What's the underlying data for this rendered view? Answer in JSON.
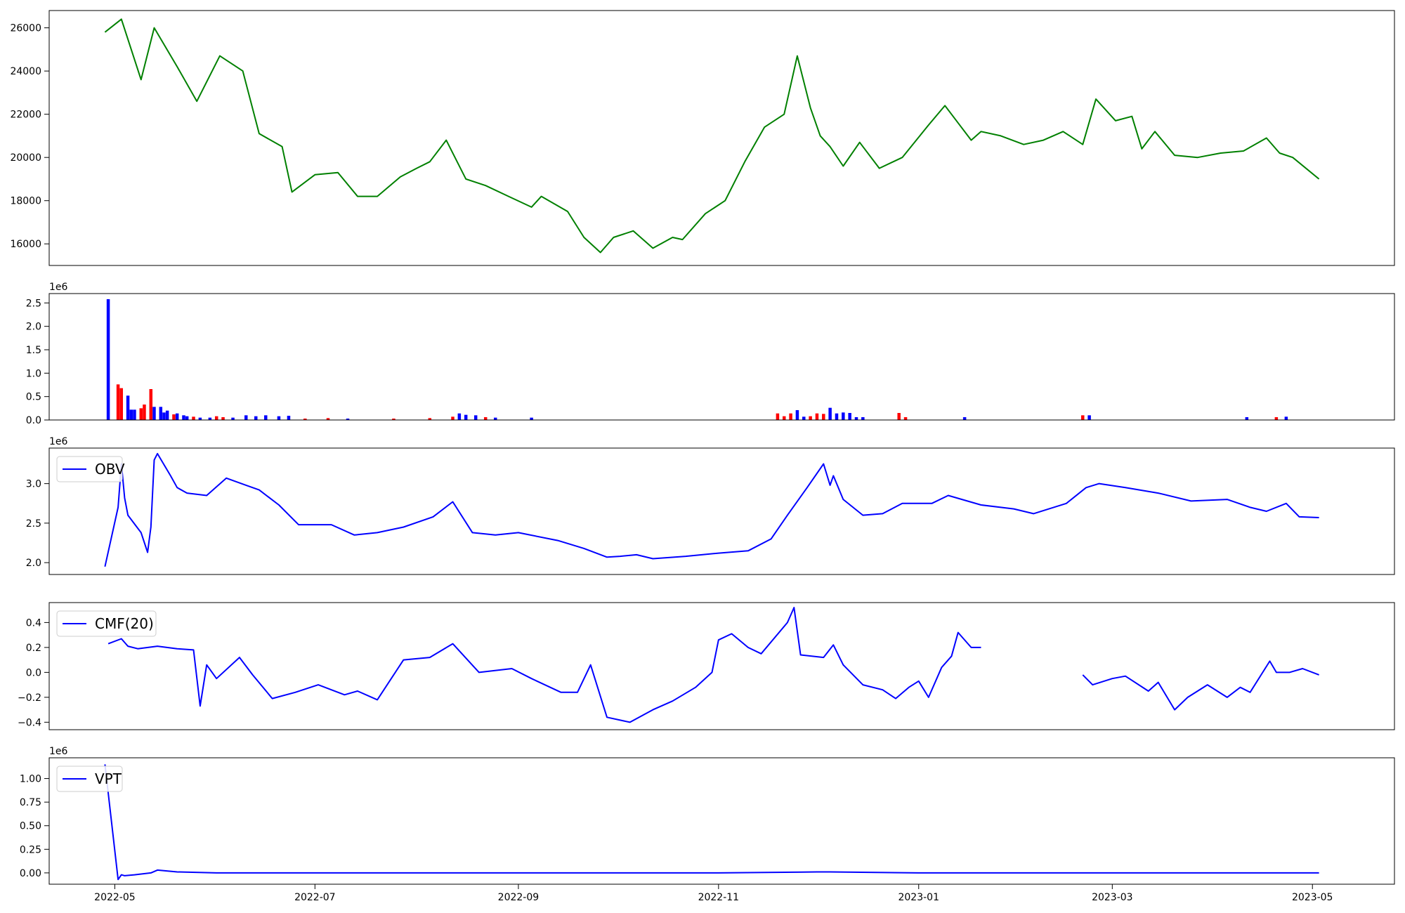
{
  "chart_data": [
    {
      "type": "line",
      "panel": "price",
      "color": "#008000",
      "ylim": [
        15000,
        26800
      ],
      "yticks": [
        16000,
        18000,
        20000,
        22000,
        24000,
        26000
      ],
      "ytick_labels": [
        "16000",
        "18000",
        "20000",
        "22000",
        "24000",
        "26000"
      ],
      "x": [
        "2022-04-28",
        "2022-05-03",
        "2022-05-09",
        "2022-05-13",
        "2022-05-20",
        "2022-05-26",
        "2022-06-02",
        "2022-06-09",
        "2022-06-14",
        "2022-06-21",
        "2022-06-24",
        "2022-07-01",
        "2022-07-08",
        "2022-07-14",
        "2022-07-20",
        "2022-07-27",
        "2022-08-01",
        "2022-08-05",
        "2022-08-10",
        "2022-08-16",
        "2022-08-22",
        "2022-08-29",
        "2022-09-05",
        "2022-09-08",
        "2022-09-16",
        "2022-09-21",
        "2022-09-26",
        "2022-09-30",
        "2022-10-06",
        "2022-10-12",
        "2022-10-18",
        "2022-10-21",
        "2022-10-28",
        "2022-11-03",
        "2022-11-09",
        "2022-11-15",
        "2022-11-21",
        "2022-11-25",
        "2022-11-29",
        "2022-12-02",
        "2022-12-05",
        "2022-12-09",
        "2022-12-14",
        "2022-12-20",
        "2022-12-27",
        "2023-01-04",
        "2023-01-09",
        "2023-01-12",
        "2023-01-17",
        "2023-01-20",
        "2023-01-26",
        "2023-02-02",
        "2023-02-08",
        "2023-02-14",
        "2023-02-20",
        "2023-02-24",
        "2023-03-02",
        "2023-03-07",
        "2023-03-10",
        "2023-03-14",
        "2023-03-20",
        "2023-03-27",
        "2023-04-03",
        "2023-04-10",
        "2023-04-17",
        "2023-04-21",
        "2023-04-25",
        "2023-05-03"
      ],
      "values": [
        25800,
        26400,
        23600,
        26000,
        24200,
        22600,
        24700,
        24000,
        21100,
        20500,
        18400,
        19200,
        19300,
        18200,
        18200,
        19100,
        19500,
        19800,
        20800,
        19000,
        18700,
        18200,
        17700,
        18200,
        17500,
        16300,
        15600,
        16300,
        16600,
        15800,
        16300,
        16200,
        17400,
        18000,
        19800,
        21400,
        22000,
        24700,
        22300,
        21000,
        20500,
        19600,
        20700,
        19500,
        20000,
        21500,
        22400,
        21800,
        20800,
        21200,
        21000,
        20600,
        20800,
        21200,
        20600,
        22700,
        21700,
        21900,
        20400,
        21200,
        20100,
        20000,
        20200,
        20300,
        20900,
        20200,
        20000,
        19000
      ]
    },
    {
      "type": "bar",
      "panel": "volume",
      "multiplier_label": "1e6",
      "ylim": [
        0,
        2.7
      ],
      "yticks": [
        0,
        0.5,
        1.0,
        1.5,
        2.0,
        2.5
      ],
      "ytick_labels": [
        "0.0",
        "0.5",
        "1.0",
        "1.5",
        "2.0",
        "2.5"
      ],
      "colors": {
        "up": "#0000ff",
        "down": "#ff0000"
      },
      "bars": [
        {
          "x": "2022-04-29",
          "value": 2.58,
          "color": "up"
        },
        {
          "x": "2022-05-02",
          "value": 0.76,
          "color": "down"
        },
        {
          "x": "2022-05-03",
          "value": 0.68,
          "color": "down"
        },
        {
          "x": "2022-05-05",
          "value": 0.52,
          "color": "up"
        },
        {
          "x": "2022-05-06",
          "value": 0.22,
          "color": "up"
        },
        {
          "x": "2022-05-07",
          "value": 0.22,
          "color": "up"
        },
        {
          "x": "2022-05-09",
          "value": 0.25,
          "color": "down"
        },
        {
          "x": "2022-05-10",
          "value": 0.33,
          "color": "down"
        },
        {
          "x": "2022-05-12",
          "value": 0.66,
          "color": "down"
        },
        {
          "x": "2022-05-13",
          "value": 0.28,
          "color": "up"
        },
        {
          "x": "2022-05-15",
          "value": 0.28,
          "color": "up"
        },
        {
          "x": "2022-05-16",
          "value": 0.16,
          "color": "up"
        },
        {
          "x": "2022-05-17",
          "value": 0.2,
          "color": "up"
        },
        {
          "x": "2022-05-19",
          "value": 0.12,
          "color": "down"
        },
        {
          "x": "2022-05-20",
          "value": 0.14,
          "color": "up"
        },
        {
          "x": "2022-05-22",
          "value": 0.1,
          "color": "up"
        },
        {
          "x": "2022-05-23",
          "value": 0.08,
          "color": "up"
        },
        {
          "x": "2022-05-25",
          "value": 0.07,
          "color": "down"
        },
        {
          "x": "2022-05-27",
          "value": 0.05,
          "color": "up"
        },
        {
          "x": "2022-05-30",
          "value": 0.05,
          "color": "up"
        },
        {
          "x": "2022-06-01",
          "value": 0.08,
          "color": "down"
        },
        {
          "x": "2022-06-03",
          "value": 0.06,
          "color": "down"
        },
        {
          "x": "2022-06-06",
          "value": 0.05,
          "color": "up"
        },
        {
          "x": "2022-06-10",
          "value": 0.1,
          "color": "up"
        },
        {
          "x": "2022-06-13",
          "value": 0.08,
          "color": "up"
        },
        {
          "x": "2022-06-16",
          "value": 0.1,
          "color": "up"
        },
        {
          "x": "2022-06-20",
          "value": 0.08,
          "color": "up"
        },
        {
          "x": "2022-06-23",
          "value": 0.09,
          "color": "up"
        },
        {
          "x": "2022-06-28",
          "value": 0.03,
          "color": "down"
        },
        {
          "x": "2022-07-05",
          "value": 0.04,
          "color": "down"
        },
        {
          "x": "2022-07-11",
          "value": 0.03,
          "color": "up"
        },
        {
          "x": "2022-07-25",
          "value": 0.03,
          "color": "down"
        },
        {
          "x": "2022-08-05",
          "value": 0.04,
          "color": "down"
        },
        {
          "x": "2022-08-12",
          "value": 0.07,
          "color": "down"
        },
        {
          "x": "2022-08-14",
          "value": 0.14,
          "color": "up"
        },
        {
          "x": "2022-08-16",
          "value": 0.11,
          "color": "up"
        },
        {
          "x": "2022-08-19",
          "value": 0.1,
          "color": "up"
        },
        {
          "x": "2022-08-22",
          "value": 0.06,
          "color": "down"
        },
        {
          "x": "2022-08-25",
          "value": 0.05,
          "color": "up"
        },
        {
          "x": "2022-09-05",
          "value": 0.05,
          "color": "up"
        },
        {
          "x": "2022-11-19",
          "value": 0.14,
          "color": "down"
        },
        {
          "x": "2022-11-21",
          "value": 0.08,
          "color": "down"
        },
        {
          "x": "2022-11-23",
          "value": 0.14,
          "color": "down"
        },
        {
          "x": "2022-11-25",
          "value": 0.21,
          "color": "up"
        },
        {
          "x": "2022-11-27",
          "value": 0.07,
          "color": "up"
        },
        {
          "x": "2022-11-29",
          "value": 0.08,
          "color": "down"
        },
        {
          "x": "2022-12-01",
          "value": 0.14,
          "color": "down"
        },
        {
          "x": "2022-12-03",
          "value": 0.13,
          "color": "down"
        },
        {
          "x": "2022-12-05",
          "value": 0.26,
          "color": "up"
        },
        {
          "x": "2022-12-07",
          "value": 0.14,
          "color": "up"
        },
        {
          "x": "2022-12-09",
          "value": 0.16,
          "color": "up"
        },
        {
          "x": "2022-12-11",
          "value": 0.15,
          "color": "up"
        },
        {
          "x": "2022-12-13",
          "value": 0.06,
          "color": "up"
        },
        {
          "x": "2022-12-15",
          "value": 0.06,
          "color": "up"
        },
        {
          "x": "2022-12-26",
          "value": 0.15,
          "color": "down"
        },
        {
          "x": "2022-12-28",
          "value": 0.06,
          "color": "down"
        },
        {
          "x": "2023-01-15",
          "value": 0.06,
          "color": "up"
        },
        {
          "x": "2023-02-20",
          "value": 0.1,
          "color": "down"
        },
        {
          "x": "2023-02-22",
          "value": 0.1,
          "color": "up"
        },
        {
          "x": "2023-04-11",
          "value": 0.06,
          "color": "up"
        },
        {
          "x": "2023-04-20",
          "value": 0.06,
          "color": "down"
        },
        {
          "x": "2023-04-23",
          "value": 0.07,
          "color": "up"
        }
      ]
    },
    {
      "type": "line",
      "panel": "obv",
      "legend": "OBV",
      "legend_loc": "upper-left",
      "color": "#0000ff",
      "multiplier_label": "1e6",
      "ylim": [
        1.85,
        3.45
      ],
      "yticks": [
        2.0,
        2.5,
        3.0
      ],
      "ytick_labels": [
        "2.0",
        "2.5",
        "3.0"
      ],
      "x": [
        "2022-04-28",
        "2022-05-02",
        "2022-05-03",
        "2022-05-04",
        "2022-05-05",
        "2022-05-09",
        "2022-05-11",
        "2022-05-12",
        "2022-05-13",
        "2022-05-14",
        "2022-05-18",
        "2022-05-20",
        "2022-05-23",
        "2022-05-29",
        "2022-06-04",
        "2022-06-10",
        "2022-06-14",
        "2022-06-20",
        "2022-06-26",
        "2022-07-06",
        "2022-07-13",
        "2022-07-20",
        "2022-07-28",
        "2022-08-06",
        "2022-08-12",
        "2022-08-18",
        "2022-08-25",
        "2022-09-01",
        "2022-09-13",
        "2022-09-21",
        "2022-09-28",
        "2022-10-02",
        "2022-10-07",
        "2022-10-12",
        "2022-10-22",
        "2022-11-01",
        "2022-11-10",
        "2022-11-17",
        "2022-11-22",
        "2022-11-28",
        "2022-12-03",
        "2022-12-05",
        "2022-12-06",
        "2022-12-09",
        "2022-12-15",
        "2022-12-21",
        "2022-12-27",
        "2023-01-05",
        "2023-01-10",
        "2023-01-20",
        "2023-01-30",
        "2023-02-05",
        "2023-02-15",
        "2023-02-21",
        "2023-02-25",
        "2023-03-05",
        "2023-03-15",
        "2023-03-25",
        "2023-04-05",
        "2023-04-12",
        "2023-04-17",
        "2023-04-23",
        "2023-04-27",
        "2023-05-03"
      ],
      "values": [
        1.95,
        2.7,
        3.25,
        2.82,
        2.6,
        2.38,
        2.13,
        2.45,
        3.3,
        3.38,
        3.1,
        2.95,
        2.88,
        2.85,
        3.07,
        2.98,
        2.92,
        2.73,
        2.48,
        2.48,
        2.35,
        2.38,
        2.45,
        2.58,
        2.77,
        2.38,
        2.35,
        2.38,
        2.28,
        2.18,
        2.07,
        2.08,
        2.1,
        2.05,
        2.08,
        2.12,
        2.15,
        2.3,
        2.6,
        2.95,
        3.25,
        2.98,
        3.1,
        2.8,
        2.6,
        2.62,
        2.75,
        2.75,
        2.85,
        2.73,
        2.68,
        2.62,
        2.75,
        2.95,
        3.0,
        2.95,
        2.88,
        2.78,
        2.8,
        2.7,
        2.65,
        2.75,
        2.58,
        2.57
      ]
    },
    {
      "type": "line",
      "panel": "cmf",
      "legend": "CMF(20)",
      "legend_loc": "upper-left",
      "color": "#0000ff",
      "ylim": [
        -0.46,
        0.56
      ],
      "yticks": [
        -0.4,
        -0.2,
        0.0,
        0.2,
        0.4
      ],
      "ytick_labels": [
        "−0.4",
        "−0.2",
        "0.0",
        "0.2",
        "0.4"
      ],
      "segments": [
        {
          "x": [
            "2022-04-29",
            "2022-05-03",
            "2022-05-05",
            "2022-05-08",
            "2022-05-14",
            "2022-05-20",
            "2022-05-25",
            "2022-05-27",
            "2022-05-29",
            "2022-06-01",
            "2022-06-08",
            "2022-06-12",
            "2022-06-18",
            "2022-06-25",
            "2022-07-02",
            "2022-07-10",
            "2022-07-14",
            "2022-07-20",
            "2022-07-28",
            "2022-08-05",
            "2022-08-12",
            "2022-08-20",
            "2022-08-30",
            "2022-09-05",
            "2022-09-14",
            "2022-09-19",
            "2022-09-23",
            "2022-09-28",
            "2022-10-05",
            "2022-10-12",
            "2022-10-18",
            "2022-10-25",
            "2022-10-30",
            "2022-11-01",
            "2022-11-05",
            "2022-11-10",
            "2022-11-14",
            "2022-11-22",
            "2022-11-24",
            "2022-11-26",
            "2022-12-03",
            "2022-12-06",
            "2022-12-09",
            "2022-12-15",
            "2022-12-21",
            "2022-12-25",
            "2022-12-29",
            "2023-01-01",
            "2023-01-04",
            "2023-01-08",
            "2023-01-11",
            "2023-01-13",
            "2023-01-17",
            "2023-01-20"
          ],
          "values": [
            0.23,
            0.27,
            0.21,
            0.19,
            0.21,
            0.19,
            0.18,
            -0.27,
            0.06,
            -0.05,
            0.12,
            -0.02,
            -0.21,
            -0.16,
            -0.1,
            -0.18,
            -0.15,
            -0.22,
            0.1,
            0.12,
            0.23,
            0.0,
            0.03,
            -0.05,
            -0.16,
            -0.16,
            0.06,
            -0.36,
            -0.4,
            -0.3,
            -0.23,
            -0.12,
            0.0,
            0.26,
            0.31,
            0.2,
            0.15,
            0.4,
            0.52,
            0.14,
            0.12,
            0.22,
            0.06,
            -0.1,
            -0.14,
            -0.21,
            -0.12,
            -0.07,
            -0.2,
            0.04,
            0.13,
            0.32,
            0.2,
            0.2
          ]
        },
        {
          "x": [
            "2023-02-20",
            "2023-02-23",
            "2023-03-01",
            "2023-03-05",
            "2023-03-12",
            "2023-03-15",
            "2023-03-20",
            "2023-03-24",
            "2023-03-30",
            "2023-04-05",
            "2023-04-09",
            "2023-04-12",
            "2023-04-18",
            "2023-04-20",
            "2023-04-24",
            "2023-04-28",
            "2023-05-03"
          ],
          "values": [
            -0.02,
            -0.1,
            -0.05,
            -0.03,
            -0.15,
            -0.08,
            -0.3,
            -0.2,
            -0.1,
            -0.2,
            -0.12,
            -0.16,
            0.09,
            0.0,
            0.0,
            0.03,
            -0.02
          ]
        }
      ]
    },
    {
      "type": "line",
      "panel": "vpt",
      "legend": "VPT",
      "legend_loc": "upper-left",
      "color": "#0000ff",
      "multiplier_label": "1e6",
      "ylim": [
        -0.12,
        1.22
      ],
      "yticks": [
        0.0,
        0.25,
        0.5,
        0.75,
        1.0
      ],
      "ytick_labels": [
        "0.00",
        "0.25",
        "0.50",
        "0.75",
        "1.00"
      ],
      "x": [
        "2022-04-28",
        "2022-05-02",
        "2022-05-03",
        "2022-05-04",
        "2022-05-07",
        "2022-05-12",
        "2022-05-14",
        "2022-05-20",
        "2022-06-01",
        "2022-07-01",
        "2022-08-01",
        "2022-09-01",
        "2022-10-01",
        "2022-11-01",
        "2022-12-01",
        "2022-12-05",
        "2023-01-01",
        "2023-02-01",
        "2023-03-01",
        "2023-04-01",
        "2023-05-03"
      ],
      "values": [
        1.15,
        -0.07,
        -0.02,
        -0.03,
        -0.02,
        0.0,
        0.03,
        0.01,
        0.0,
        0.0,
        0.0,
        0.0,
        0.0,
        0.0,
        0.01,
        0.01,
        0.0,
        0.0,
        0.0,
        0.0,
        0.0
      ]
    }
  ],
  "xaxis": {
    "ticks": [
      "2022-05-01",
      "2022-07-01",
      "2022-09-01",
      "2022-11-01",
      "2023-01-01",
      "2023-03-01",
      "2023-05-01"
    ],
    "labels": [
      "2022-05",
      "2022-07",
      "2022-09",
      "2022-11",
      "2023-01",
      "2023-03",
      "2023-05"
    ],
    "range": [
      "2022-04-11",
      "2023-05-26"
    ]
  }
}
